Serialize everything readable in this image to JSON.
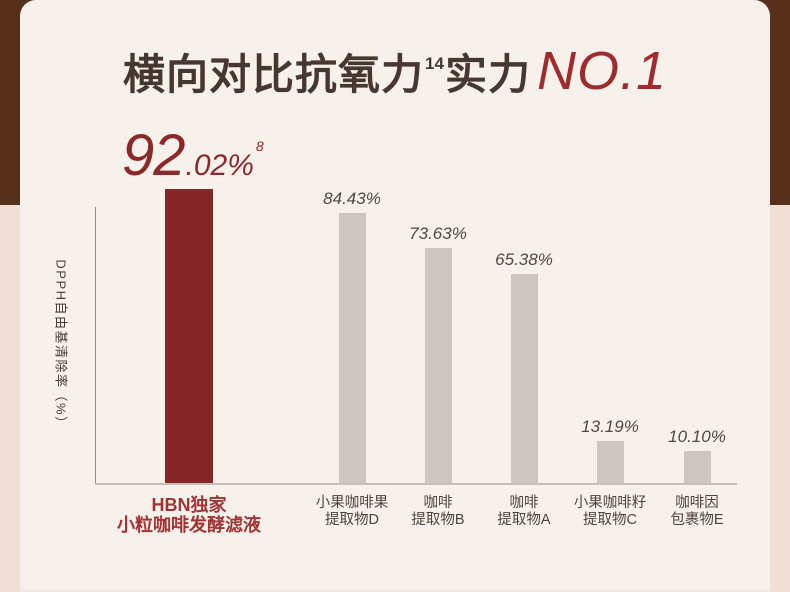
{
  "title": {
    "part1": "横向对比抗氧力",
    "sup": "14",
    "part2": "实力",
    "rank": "NO.1"
  },
  "headline": {
    "int": "92",
    "frac": ".02%",
    "sup": "8"
  },
  "colors": {
    "brand_brown": "#56301A",
    "background_pink": "#F2DFD6",
    "card_cream": "#F7F1EB",
    "highlight_red": "#862727",
    "bar_gray": "#CDC5BF",
    "title_dark": "#463830",
    "rank_red": "#9E2B2E",
    "label_gray": "#4F443C"
  },
  "chart_data": {
    "type": "bar",
    "title": "横向对比抗氧力14实力NO.1",
    "ylabel": "DPPH自由基清除率（%）",
    "xlabel": "",
    "ylim": [
      0,
      100
    ],
    "grid": false,
    "legend": "none",
    "categories": [
      "HBN独家 小粒咖啡发酵滤液",
      "小果咖啡果 提取物D",
      "咖啡 提取物B",
      "咖啡 提取物A",
      "小果咖啡籽 提取物C",
      "咖啡因 包裹物E"
    ],
    "category_lines": [
      [
        "HBN独家",
        "小粒咖啡发酵滤液"
      ],
      [
        "小果咖啡果",
        "提取物D"
      ],
      [
        "咖啡",
        "提取物B"
      ],
      [
        "咖啡",
        "提取物A"
      ],
      [
        "小果咖啡籽",
        "提取物C"
      ],
      [
        "咖啡因",
        "包裹物E"
      ]
    ],
    "values": [
      92.02,
      84.43,
      73.63,
      65.38,
      13.19,
      10.1
    ],
    "value_labels": [
      "92.02%",
      "84.43%",
      "73.63%",
      "65.38%",
      "13.19%",
      "10.10%"
    ],
    "value_label_superscript": [
      "8",
      "",
      "",
      "",
      "",
      ""
    ],
    "bar_colors": [
      "#862727",
      "#CDC5BF",
      "#CDC5BF",
      "#CDC5BF",
      "#CDC5BF",
      "#CDC5BF"
    ]
  }
}
